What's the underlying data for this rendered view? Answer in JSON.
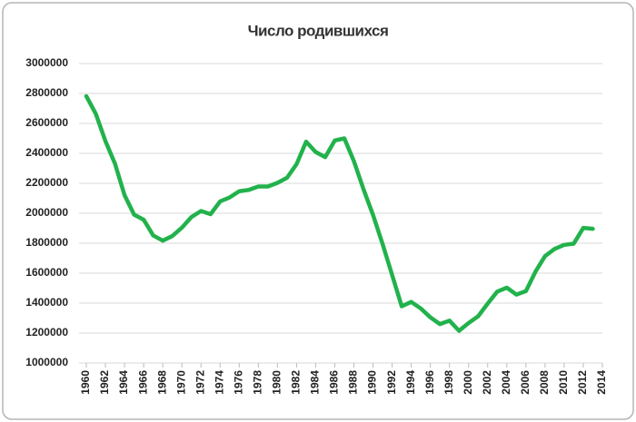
{
  "chart_data": {
    "type": "line",
    "title": "Число родившихся",
    "x": [
      1960,
      1961,
      1962,
      1963,
      1964,
      1965,
      1966,
      1967,
      1968,
      1969,
      1970,
      1971,
      1972,
      1973,
      1974,
      1975,
      1976,
      1977,
      1978,
      1979,
      1980,
      1981,
      1982,
      1983,
      1984,
      1985,
      1986,
      1987,
      1988,
      1989,
      1990,
      1991,
      1992,
      1993,
      1994,
      1995,
      1996,
      1997,
      1998,
      1999,
      2000,
      2001,
      2002,
      2003,
      2004,
      2005,
      2006,
      2007,
      2008,
      2009,
      2010,
      2011,
      2012,
      2013
    ],
    "values": [
      2782000,
      2663000,
      2482000,
      2331000,
      2121000,
      1991000,
      1957000,
      1852000,
      1817000,
      1848000,
      1904000,
      1975000,
      2015000,
      1994000,
      2079000,
      2106000,
      2147000,
      2156000,
      2179000,
      2179000,
      2203000,
      2237000,
      2328000,
      2478000,
      2409000,
      2375000,
      2486000,
      2500000,
      2348000,
      2161000,
      1989000,
      1795000,
      1588000,
      1379000,
      1408000,
      1364000,
      1305000,
      1260000,
      1283000,
      1215000,
      1267000,
      1312000,
      1397000,
      1477000,
      1503000,
      1457000,
      1480000,
      1610000,
      1714000,
      1762000,
      1789000,
      1797000,
      1902000,
      1896000
    ],
    "color": "#22b24c",
    "xlim": [
      1960,
      2014
    ],
    "xticks": [
      1960,
      1962,
      1964,
      1966,
      1968,
      1970,
      1972,
      1974,
      1976,
      1978,
      1980,
      1982,
      1984,
      1986,
      1988,
      1990,
      1992,
      1994,
      1996,
      1998,
      2000,
      2002,
      2004,
      2006,
      2008,
      2010,
      2012,
      2014
    ],
    "ylim": [
      1000000,
      3000000
    ],
    "yticks": [
      1000000,
      1200000,
      1400000,
      1600000,
      1800000,
      2000000,
      2200000,
      2400000,
      2600000,
      2800000,
      3000000
    ],
    "grid": true
  }
}
